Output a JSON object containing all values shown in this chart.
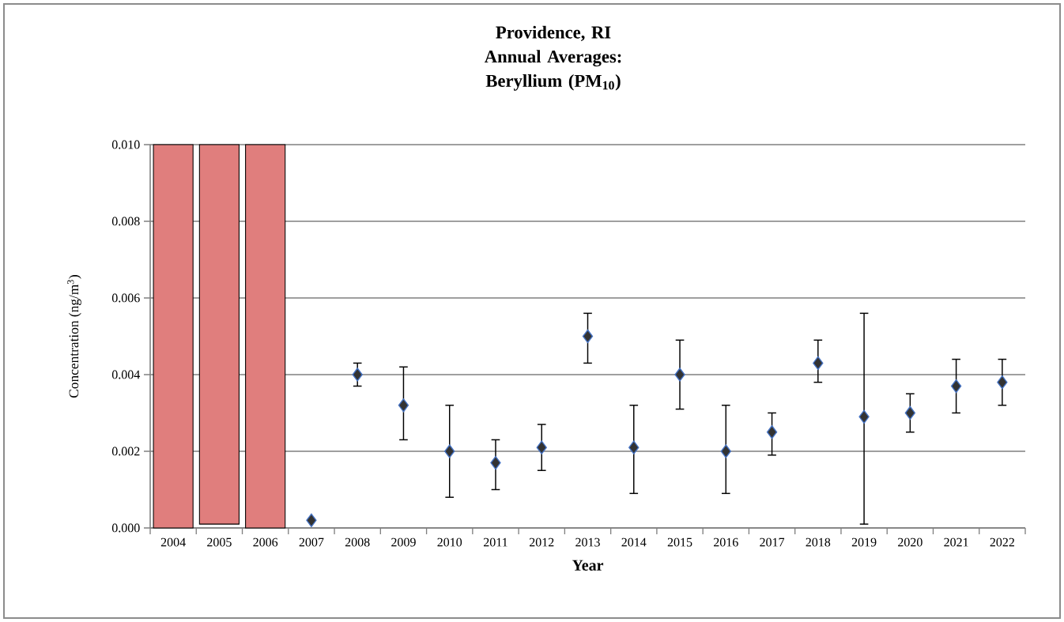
{
  "chart_data": {
    "type": "scatter",
    "title": "Providence, RI Annual Averages: Beryllium (PM$_{10}$)",
    "xlabel": "Year",
    "ylabel": "Concentration (ng/m$^{3}$)",
    "categories": [
      "2004",
      "2005",
      "2006",
      "2007",
      "2008",
      "2009",
      "2010",
      "2011",
      "2012",
      "2013",
      "2014",
      "2015",
      "2016",
      "2017",
      "2018",
      "2019",
      "2020",
      "2021",
      "2022"
    ],
    "series": [
      {
        "type": "bar",
        "color": "#e07e7d",
        "values": [
          0.01,
          0.0099,
          0.01,
          null,
          null,
          null,
          null,
          null,
          null,
          null,
          null,
          null,
          null,
          null,
          null,
          null,
          null,
          null,
          null
        ],
        "base": [
          0,
          0.0001,
          0,
          null,
          null,
          null,
          null,
          null,
          null,
          null,
          null,
          null,
          null,
          null,
          null,
          null,
          null,
          null,
          null
        ]
      },
      {
        "color": "#333333",
        "marker": "diamond",
        "values": [
          null,
          null,
          null,
          0.0002,
          0.004,
          0.0032,
          0.002,
          0.0017,
          0.0021,
          0.005,
          0.0021,
          0.004,
          0.002,
          0.0025,
          0.0043,
          0.0029,
          0.003,
          0.0037,
          0.0038
        ],
        "errors": [
          null,
          null,
          null,
          null,
          [
            0.0037,
            0.0043
          ],
          [
            0.0023,
            0.0042
          ],
          [
            0.0008,
            0.0032
          ],
          [
            0.001,
            0.0023
          ],
          [
            0.0015,
            0.0027
          ],
          [
            0.0043,
            0.0056
          ],
          [
            0.0009,
            0.0032
          ],
          [
            0.0031,
            0.0049
          ],
          [
            0.0009,
            0.0032
          ],
          [
            0.0019,
            0.003
          ],
          [
            0.0038,
            0.0049
          ],
          [
            0.0001,
            0.0056
          ],
          [
            0.0025,
            0.0035
          ],
          [
            0.003,
            0.0044
          ],
          [
            0.0032,
            0.0044
          ]
        ]
      }
    ],
    "ylim": [
      0,
      0.01
    ],
    "yticks": [
      {
        "value": 0,
        "label": "0.000"
      },
      {
        "value": 0.002,
        "label": "0.002"
      },
      {
        "value": 0.004,
        "label": "0.004"
      },
      {
        "value": 0.006,
        "label": "0.006"
      },
      {
        "value": 0.008,
        "label": "0.008"
      },
      {
        "value": 0.01,
        "label": "0.010"
      }
    ],
    "grid": "y"
  }
}
